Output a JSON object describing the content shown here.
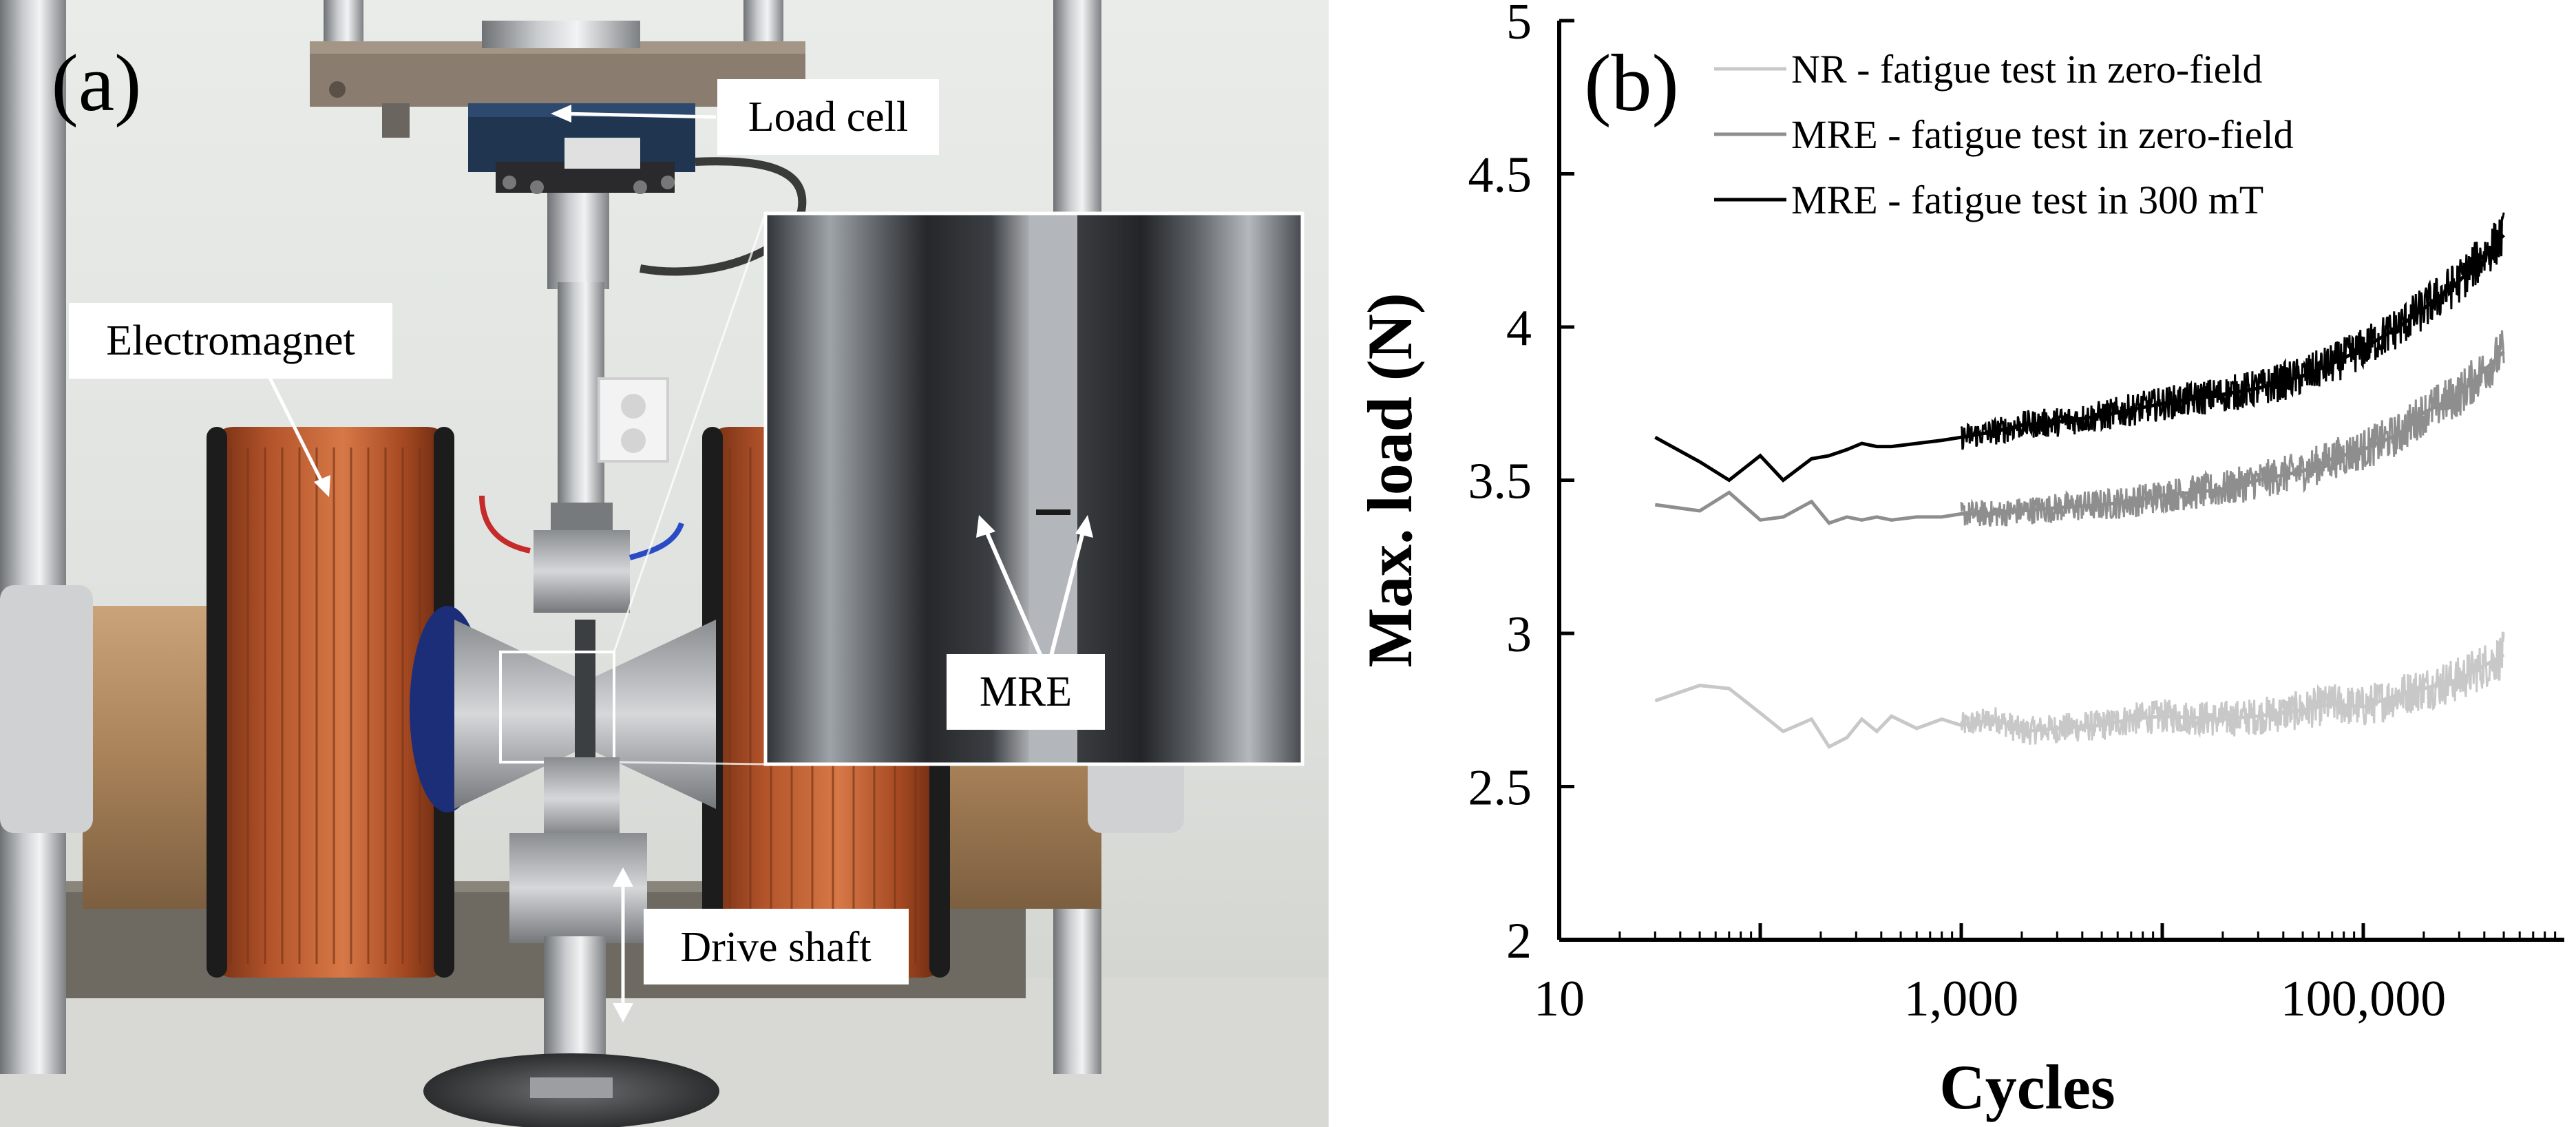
{
  "panel_a": {
    "label": "(a)",
    "callouts": {
      "load_cell": "Load cell",
      "electromagnet": "Electromagnet",
      "mre": "MRE",
      "drive_shaft": "Drive shaft"
    }
  },
  "panel_b": {
    "label": "(b)"
  },
  "chart_data": {
    "type": "line",
    "title": "",
    "xlabel": "Cycles",
    "ylabel": "Max. load (N)",
    "x_scale": "log",
    "xlim": [
      10,
      1000000
    ],
    "ylim": [
      2,
      5
    ],
    "x_ticks": [
      10,
      1000,
      100000
    ],
    "x_tick_labels": [
      "10",
      "1,000",
      "100,000"
    ],
    "y_ticks": [
      2,
      2.5,
      3,
      3.5,
      4,
      4.5,
      5
    ],
    "y_tick_labels": [
      "2",
      "2.5",
      "3",
      "3.5",
      "4",
      "4.5",
      "5"
    ],
    "legend_position": "top-left",
    "grid": false,
    "series": [
      {
        "name": "NR - fatigue test in zero-field",
        "color": "#c8c8c8",
        "x": [
          30,
          50,
          70,
          100,
          130,
          180,
          220,
          270,
          320,
          380,
          450,
          600,
          800,
          1000,
          1500,
          2000,
          3000,
          5000,
          7000,
          10000,
          20000,
          30000,
          50000,
          70000,
          100000,
          150000,
          200000,
          300000,
          500000
        ],
        "y": [
          2.78,
          2.83,
          2.82,
          2.74,
          2.68,
          2.72,
          2.63,
          2.66,
          2.72,
          2.68,
          2.73,
          2.69,
          2.72,
          2.7,
          2.72,
          2.68,
          2.69,
          2.7,
          2.72,
          2.73,
          2.72,
          2.73,
          2.75,
          2.77,
          2.76,
          2.8,
          2.82,
          2.85,
          2.93
        ],
        "noise": 0.06
      },
      {
        "name": "MRE - fatigue test in zero-field",
        "color": "#8e8e8e",
        "x": [
          30,
          50,
          70,
          100,
          130,
          180,
          220,
          270,
          320,
          380,
          450,
          600,
          800,
          1000,
          1500,
          2000,
          3000,
          5000,
          7000,
          10000,
          20000,
          30000,
          50000,
          70000,
          100000,
          150000,
          200000,
          300000,
          500000
        ],
        "y": [
          3.42,
          3.4,
          3.46,
          3.37,
          3.38,
          3.43,
          3.36,
          3.38,
          3.37,
          3.38,
          3.37,
          3.38,
          3.38,
          3.39,
          3.39,
          3.4,
          3.41,
          3.42,
          3.43,
          3.45,
          3.47,
          3.5,
          3.53,
          3.57,
          3.6,
          3.65,
          3.72,
          3.78,
          3.92
        ],
        "noise": 0.06
      },
      {
        "name": "MRE - fatigue test in 300 mT",
        "color": "#000000",
        "x": [
          30,
          50,
          70,
          100,
          130,
          180,
          220,
          270,
          320,
          380,
          450,
          600,
          800,
          1000,
          1500,
          2000,
          3000,
          5000,
          7000,
          10000,
          20000,
          30000,
          50000,
          70000,
          100000,
          150000,
          200000,
          300000,
          500000
        ],
        "y": [
          3.64,
          3.56,
          3.5,
          3.58,
          3.5,
          3.57,
          3.58,
          3.6,
          3.62,
          3.61,
          3.61,
          3.62,
          3.63,
          3.64,
          3.66,
          3.68,
          3.69,
          3.71,
          3.73,
          3.75,
          3.78,
          3.8,
          3.84,
          3.88,
          3.93,
          4.0,
          4.06,
          4.15,
          4.3
        ],
        "noise": 0.06
      }
    ]
  }
}
